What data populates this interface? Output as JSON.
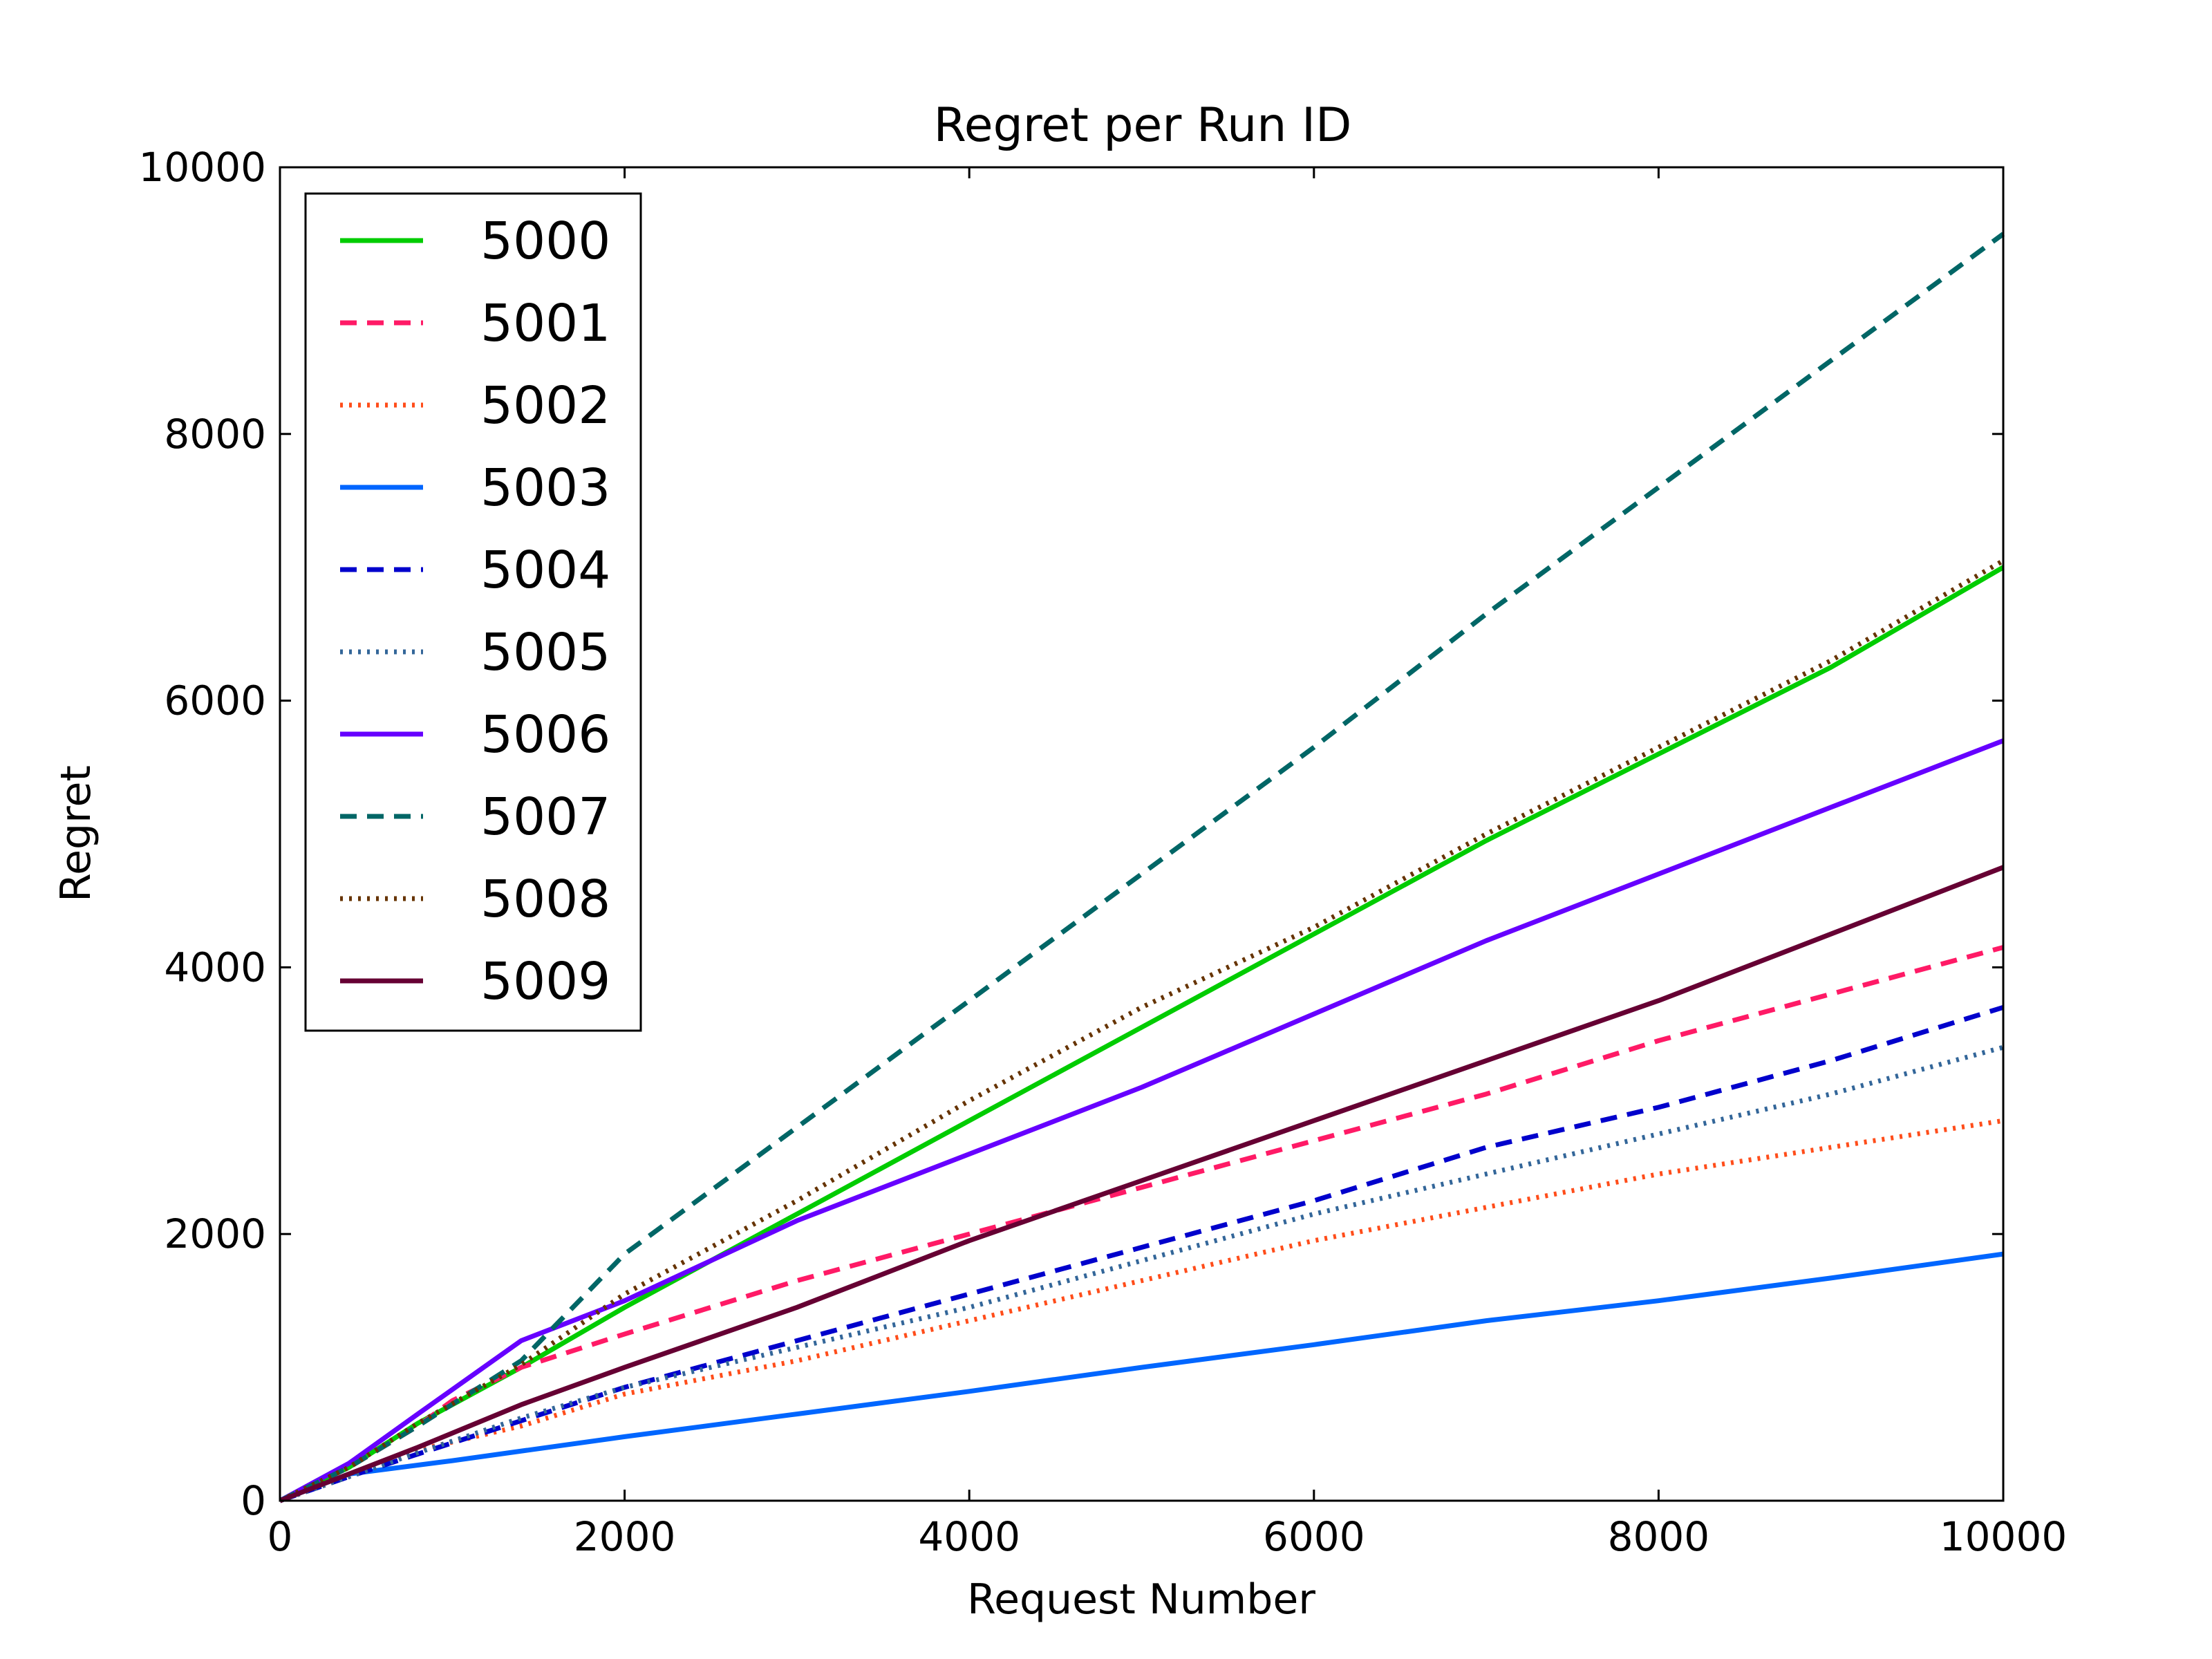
{
  "chart_data": {
    "type": "line",
    "title": "Regret per Run ID",
    "xlabel": "Request Number",
    "ylabel": "Regret",
    "xlim": [
      0,
      10000
    ],
    "ylim": [
      0,
      10000
    ],
    "xticks": [
      0,
      2000,
      4000,
      6000,
      8000,
      10000
    ],
    "yticks": [
      0,
      2000,
      4000,
      6000,
      8000,
      10000
    ],
    "grid": false,
    "legend_position": "top-left",
    "series": [
      {
        "name": "5000",
        "color": "#00cc00",
        "style": "solid",
        "points": [
          [
            0,
            0
          ],
          [
            400,
            250
          ],
          [
            800,
            580
          ],
          [
            1400,
            1000
          ],
          [
            2000,
            1450
          ],
          [
            3000,
            2150
          ],
          [
            4000,
            2850
          ],
          [
            5000,
            3550
          ],
          [
            6000,
            4250
          ],
          [
            7000,
            4950
          ],
          [
            8000,
            5600
          ],
          [
            9000,
            6250
          ],
          [
            10000,
            7000
          ]
        ]
      },
      {
        "name": "5001",
        "color": "#ff1a66",
        "style": "dashed",
        "points": [
          [
            0,
            0
          ],
          [
            400,
            250
          ],
          [
            800,
            560
          ],
          [
            1000,
            750
          ],
          [
            1400,
            1000
          ],
          [
            2000,
            1250
          ],
          [
            3000,
            1650
          ],
          [
            4000,
            2000
          ],
          [
            5000,
            2350
          ],
          [
            6000,
            2700
          ],
          [
            7000,
            3050
          ],
          [
            8000,
            3450
          ],
          [
            9000,
            3800
          ],
          [
            10000,
            4150
          ]
        ]
      },
      {
        "name": "5002",
        "color": "#ff4d1a",
        "style": "dotted",
        "points": [
          [
            0,
            0
          ],
          [
            400,
            180
          ],
          [
            800,
            380
          ],
          [
            1400,
            560
          ],
          [
            2000,
            800
          ],
          [
            3000,
            1050
          ],
          [
            4000,
            1350
          ],
          [
            5000,
            1650
          ],
          [
            6000,
            1950
          ],
          [
            7000,
            2200
          ],
          [
            8000,
            2450
          ],
          [
            9000,
            2650
          ],
          [
            10000,
            2850
          ]
        ]
      },
      {
        "name": "5003",
        "color": "#0066ff",
        "style": "solid",
        "points": [
          [
            0,
            0
          ],
          [
            400,
            200
          ],
          [
            1000,
            300
          ],
          [
            2000,
            480
          ],
          [
            3000,
            650
          ],
          [
            4000,
            820
          ],
          [
            5000,
            1000
          ],
          [
            6000,
            1170
          ],
          [
            7000,
            1350
          ],
          [
            8000,
            1500
          ],
          [
            9000,
            1670
          ],
          [
            10000,
            1850
          ]
        ]
      },
      {
        "name": "5004",
        "color": "#0000cc",
        "style": "dashed",
        "points": [
          [
            0,
            0
          ],
          [
            400,
            180
          ],
          [
            800,
            350
          ],
          [
            1400,
            600
          ],
          [
            2000,
            850
          ],
          [
            3000,
            1200
          ],
          [
            4000,
            1550
          ],
          [
            5000,
            1900
          ],
          [
            6000,
            2250
          ],
          [
            7000,
            2650
          ],
          [
            8000,
            2950
          ],
          [
            9000,
            3300
          ],
          [
            10000,
            3700
          ]
        ]
      },
      {
        "name": "5005",
        "color": "#336699",
        "style": "dotted",
        "points": [
          [
            0,
            0
          ],
          [
            400,
            180
          ],
          [
            800,
            360
          ],
          [
            1400,
            620
          ],
          [
            2000,
            850
          ],
          [
            3000,
            1150
          ],
          [
            4000,
            1450
          ],
          [
            5000,
            1800
          ],
          [
            6000,
            2150
          ],
          [
            7000,
            2450
          ],
          [
            8000,
            2750
          ],
          [
            9000,
            3050
          ],
          [
            10000,
            3400
          ]
        ]
      },
      {
        "name": "5006",
        "color": "#6600ff",
        "style": "solid",
        "points": [
          [
            0,
            0
          ],
          [
            400,
            280
          ],
          [
            800,
            650
          ],
          [
            1400,
            1200
          ],
          [
            2000,
            1500
          ],
          [
            3000,
            2100
          ],
          [
            4000,
            2600
          ],
          [
            5000,
            3100
          ],
          [
            6000,
            3650
          ],
          [
            7000,
            4200
          ],
          [
            8000,
            4700
          ],
          [
            9000,
            5200
          ],
          [
            10000,
            5700
          ]
        ]
      },
      {
        "name": "5007",
        "color": "#006666",
        "style": "dashed",
        "points": [
          [
            0,
            0
          ],
          [
            400,
            250
          ],
          [
            800,
            560
          ],
          [
            1400,
            1050
          ],
          [
            2000,
            1850
          ],
          [
            3000,
            2800
          ],
          [
            4000,
            3750
          ],
          [
            5000,
            4700
          ],
          [
            6000,
            5650
          ],
          [
            7000,
            6650
          ],
          [
            8000,
            7600
          ],
          [
            9000,
            8550
          ],
          [
            10000,
            9500
          ]
        ]
      },
      {
        "name": "5008",
        "color": "#663300",
        "style": "dotted",
        "points": [
          [
            0,
            0
          ],
          [
            400,
            250
          ],
          [
            800,
            580
          ],
          [
            1400,
            1020
          ],
          [
            2000,
            1550
          ],
          [
            3000,
            2250
          ],
          [
            4000,
            3000
          ],
          [
            5000,
            3700
          ],
          [
            6000,
            4300
          ],
          [
            7000,
            5000
          ],
          [
            8000,
            5650
          ],
          [
            9000,
            6300
          ],
          [
            10000,
            7050
          ]
        ]
      },
      {
        "name": "5009",
        "color": "#660033",
        "style": "solid",
        "points": [
          [
            0,
            0
          ],
          [
            400,
            200
          ],
          [
            800,
            400
          ],
          [
            1400,
            720
          ],
          [
            2000,
            1000
          ],
          [
            3000,
            1450
          ],
          [
            4000,
            1950
          ],
          [
            5000,
            2400
          ],
          [
            6000,
            2850
          ],
          [
            7000,
            3300
          ],
          [
            8000,
            3750
          ],
          [
            9000,
            4250
          ],
          [
            10000,
            4750
          ]
        ]
      }
    ]
  }
}
